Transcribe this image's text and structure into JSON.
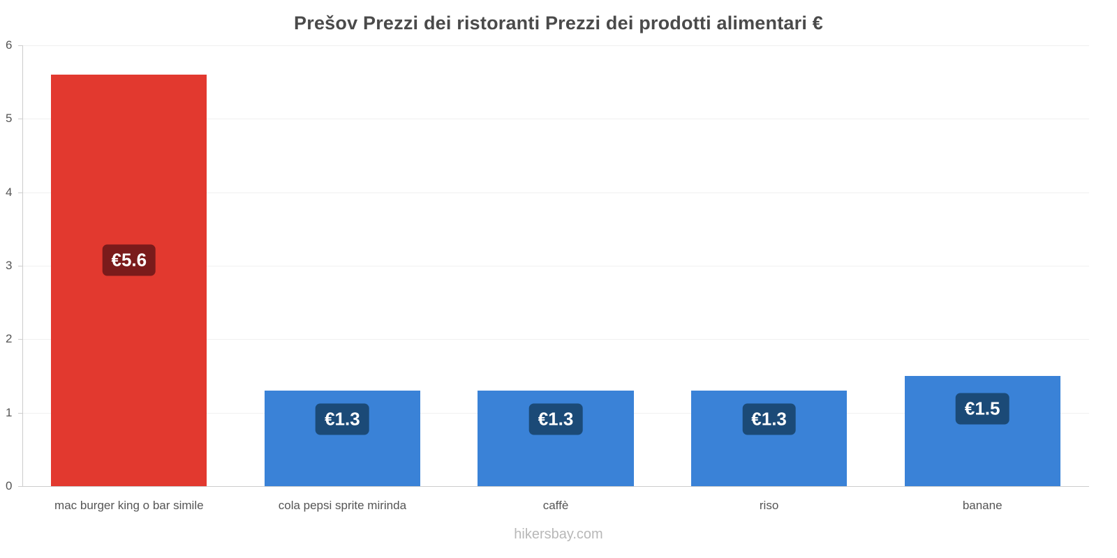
{
  "title": "Prešov Prezzi dei ristoranti Prezzi dei prodotti alimentari €",
  "footer": {
    "text": "hikersbay.com"
  },
  "colors": {
    "highlight_bar": "#e2392f",
    "default_bar": "#3a82d7",
    "highlight_badge": "#7a1b1b",
    "default_badge": "#1b4a77",
    "grid": "#f0f0f0",
    "axis": "#cccccc"
  },
  "chart_data": {
    "type": "bar",
    "title": "Prešov Prezzi dei ristoranti Prezzi dei prodotti alimentari €",
    "xlabel": "",
    "ylabel": "",
    "categories": [
      "mac burger king o bar simile",
      "cola pepsi sprite mirinda",
      "caffè",
      "riso",
      "banane"
    ],
    "values": [
      5.6,
      1.3,
      1.3,
      1.3,
      1.5
    ],
    "value_labels": [
      "€5.6",
      "€1.3",
      "€1.3",
      "€1.3",
      "€1.5"
    ],
    "bar_colors": [
      "#e2392f",
      "#3a82d7",
      "#3a82d7",
      "#3a82d7",
      "#3a82d7"
    ],
    "badge_colors": [
      "#7a1b1b",
      "#1b4a77",
      "#1b4a77",
      "#1b4a77",
      "#1b4a77"
    ],
    "ylim": [
      0,
      6
    ],
    "yticks": [
      0,
      1,
      2,
      3,
      4,
      5,
      6
    ],
    "grid": true,
    "legend": false,
    "currency": "€"
  }
}
